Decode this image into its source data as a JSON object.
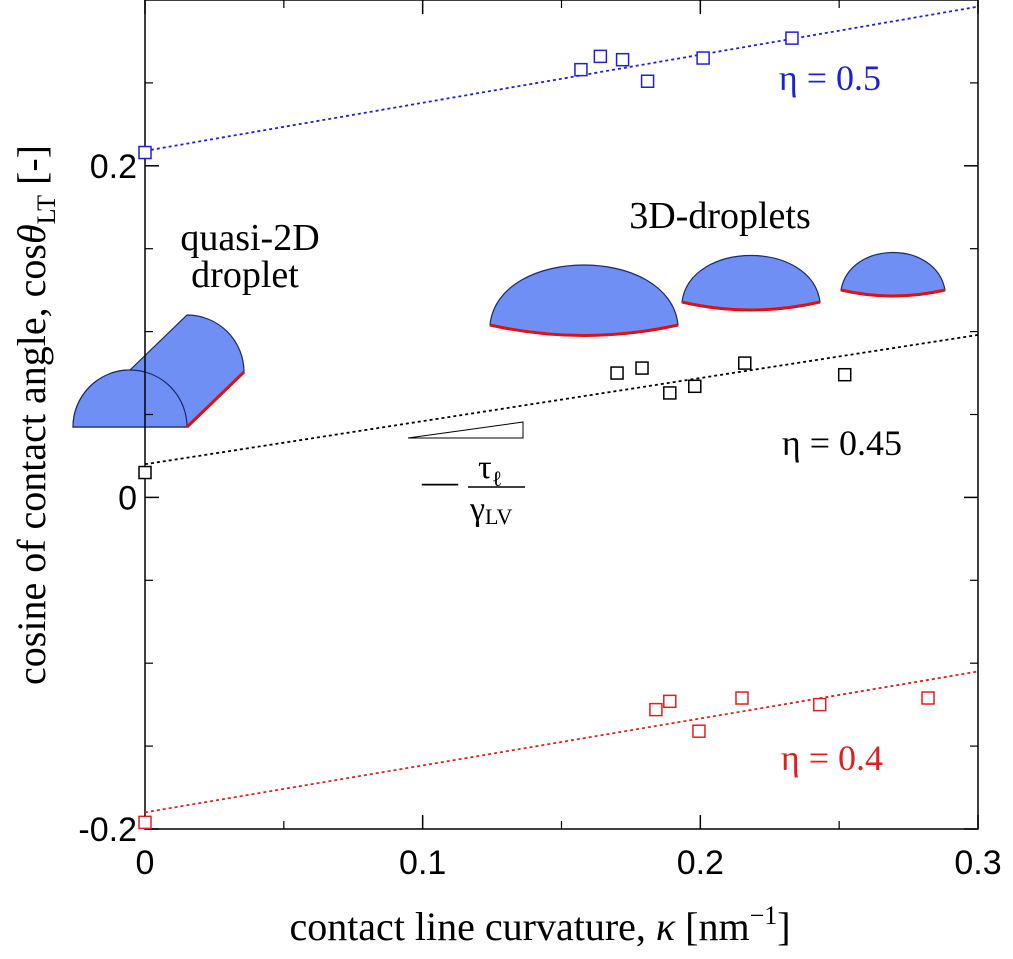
{
  "chart_data": {
    "type": "scatter",
    "x_label": {
      "text": "contact line curvature, ",
      "symbol": "κ",
      "unit": " [nm",
      "exponent": "−1",
      "close": "]"
    },
    "y_label": {
      "text": "cosine of contact angle, cos",
      "symbol": "θ",
      "subscript": "LT",
      "unit": " [-]"
    },
    "xlim": [
      0,
      0.3
    ],
    "ylim": [
      -0.2,
      0.3
    ],
    "xticks": [
      0,
      0.1,
      0.2,
      0.3
    ],
    "yticks": [
      -0.2,
      0,
      0.2
    ],
    "xticks_minor": [
      0.05,
      0.15,
      0.25
    ],
    "yticks_minor": [
      -0.15,
      -0.1,
      -0.05,
      0.05,
      0.1,
      0.15,
      0.25
    ],
    "series": [
      {
        "name": "η = 0.5",
        "color": "#1f1fd6",
        "x": [
          0,
          0.157,
          0.164,
          0.172,
          0.181,
          0.201,
          0.233
        ],
        "values": [
          0.208,
          0.258,
          0.266,
          0.264,
          0.251,
          0.265,
          0.277
        ],
        "fit": {
          "x": [
            0,
            0.3
          ],
          "values": [
            0.209,
            0.296
          ]
        }
      },
      {
        "name": "η = 0.45",
        "color": "#000000",
        "x": [
          0,
          0.17,
          0.179,
          0.189,
          0.198,
          0.216,
          0.252
        ],
        "values": [
          0.015,
          0.075,
          0.078,
          0.063,
          0.067,
          0.081,
          0.074
        ],
        "fit": {
          "x": [
            0,
            0.3
          ],
          "values": [
            0.02,
            0.098
          ]
        }
      },
      {
        "name": "η = 0.4",
        "color": "#e02020",
        "x": [
          0,
          0.184,
          0.189,
          0.1995,
          0.215,
          0.243,
          0.282
        ],
        "values": [
          -0.196,
          -0.128,
          -0.123,
          -0.141,
          -0.121,
          -0.125,
          -0.121
        ],
        "fit": {
          "x": [
            0,
            0.3
          ],
          "values": [
            -0.19,
            -0.105
          ]
        }
      }
    ],
    "annotations": {
      "quasi_2d": [
        "quasi-2D",
        "droplet"
      ],
      "droplets_3d": "3D-droplets",
      "slope": {
        "sign": "—",
        "numerator": "τ",
        "numerator_sub": "ℓ",
        "denominator": "γ",
        "denominator_sub": "LV"
      }
    }
  }
}
